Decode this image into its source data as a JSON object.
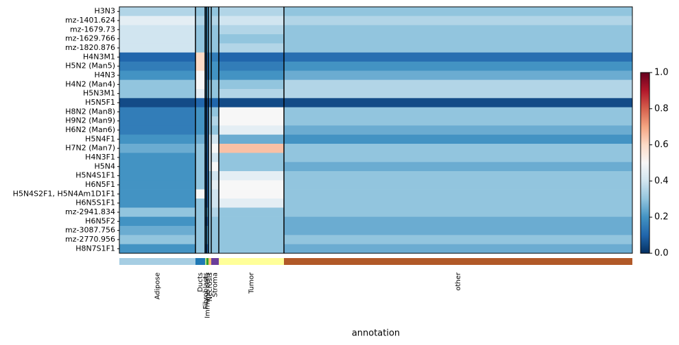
{
  "chart_data": {
    "type": "heatmap",
    "xlabel": "annotation",
    "rows": [
      "H3N3",
      "mz-1401.624",
      "mz-1679.73",
      "mz-1629.766",
      "mz-1820.876",
      "H4N3M1",
      "H5N2 (Man5)",
      "H4N3",
      "H4N2 (Man4)",
      "H5N3M1",
      "H5N5F1",
      "H8N2 (Man8)",
      "H9N2 (Man9)",
      "H6N2 (Man6)",
      "H5N4F1",
      "H7N2 (Man7)",
      "H4N3F1",
      "H5N4",
      "H5N4S1F1",
      "H6N5F1",
      "H5N4S2F1, H5N4Am1D1F1",
      "H6N5S1F1",
      "mz-2941.834",
      "H6N5F2",
      "mz-3087.756",
      "mz-2770.956",
      "H8N7S1F1"
    ],
    "groups": [
      {
        "name": "Adipose",
        "color": "#a6cee3",
        "size": 111
      },
      {
        "name": "Ducts",
        "color": "#1f78b4",
        "size": 14
      },
      {
        "name": "Fibroblasts",
        "color": "#b2df8a",
        "size": 2
      },
      {
        "name": "Immune cells",
        "color": "#33a02c",
        "size": 3
      },
      {
        "name": "Necrosis",
        "color": "#fdbf6f",
        "size": 4
      },
      {
        "name": "Stroma",
        "color": "#6a3d9a",
        "size": 11
      },
      {
        "name": "Tumor",
        "color": "#ffff99",
        "size": 95
      },
      {
        "name": "other",
        "color": "#b15928",
        "size": 508
      }
    ],
    "values": [
      [
        0.35,
        0.3,
        0.2,
        0.2,
        0.3,
        0.3,
        0.35,
        0.3
      ],
      [
        0.45,
        0.35,
        0.2,
        0.2,
        0.3,
        0.35,
        0.4,
        0.35
      ],
      [
        0.4,
        0.3,
        0.2,
        0.2,
        0.3,
        0.3,
        0.35,
        0.3
      ],
      [
        0.4,
        0.3,
        0.2,
        0.2,
        0.3,
        0.3,
        0.3,
        0.3
      ],
      [
        0.4,
        0.3,
        0.2,
        0.2,
        0.3,
        0.3,
        0.35,
        0.3
      ],
      [
        0.1,
        0.6,
        0.1,
        0.1,
        0.2,
        0.15,
        0.1,
        0.12
      ],
      [
        0.15,
        0.6,
        0.15,
        0.1,
        0.2,
        0.2,
        0.15,
        0.2
      ],
      [
        0.2,
        0.5,
        0.15,
        0.1,
        0.2,
        0.2,
        0.2,
        0.25
      ],
      [
        0.3,
        0.5,
        0.2,
        0.2,
        0.3,
        0.3,
        0.3,
        0.35
      ],
      [
        0.3,
        0.45,
        0.2,
        0.2,
        0.3,
        0.3,
        0.35,
        0.35
      ],
      [
        0.05,
        0.1,
        0.05,
        0.05,
        0.1,
        0.1,
        0.05,
        0.05
      ],
      [
        0.15,
        0.2,
        0.1,
        0.1,
        0.3,
        0.3,
        0.5,
        0.3
      ],
      [
        0.15,
        0.2,
        0.1,
        0.1,
        0.3,
        0.35,
        0.5,
        0.3
      ],
      [
        0.15,
        0.2,
        0.1,
        0.1,
        0.3,
        0.3,
        0.45,
        0.25
      ],
      [
        0.2,
        0.25,
        0.1,
        0.1,
        0.4,
        0.4,
        0.25,
        0.2
      ],
      [
        0.25,
        0.3,
        0.15,
        0.1,
        0.4,
        0.5,
        0.65,
        0.3
      ],
      [
        0.2,
        0.3,
        0.1,
        0.1,
        0.4,
        0.4,
        0.3,
        0.3
      ],
      [
        0.2,
        0.3,
        0.1,
        0.1,
        0.4,
        0.5,
        0.3,
        0.25
      ],
      [
        0.2,
        0.3,
        0.1,
        0.1,
        0.3,
        0.4,
        0.45,
        0.3
      ],
      [
        0.2,
        0.3,
        0.1,
        0.1,
        0.3,
        0.45,
        0.5,
        0.3
      ],
      [
        0.2,
        0.5,
        0.1,
        0.1,
        0.3,
        0.4,
        0.5,
        0.3
      ],
      [
        0.2,
        0.3,
        0.1,
        0.1,
        0.3,
        0.4,
        0.45,
        0.3
      ],
      [
        0.3,
        0.3,
        0.2,
        0.2,
        0.3,
        0.35,
        0.3,
        0.3
      ],
      [
        0.2,
        0.3,
        0.1,
        0.1,
        0.3,
        0.3,
        0.3,
        0.25
      ],
      [
        0.25,
        0.3,
        0.2,
        0.2,
        0.3,
        0.3,
        0.3,
        0.25
      ],
      [
        0.3,
        0.3,
        0.2,
        0.2,
        0.3,
        0.3,
        0.3,
        0.3
      ],
      [
        0.2,
        0.3,
        0.1,
        0.1,
        0.3,
        0.3,
        0.3,
        0.25
      ]
    ],
    "colormap": [
      "#053061",
      "#2166ac",
      "#4393c3",
      "#92c5de",
      "#d1e5f0",
      "#f7f7f7",
      "#fddbc7",
      "#f4a582",
      "#d6604d",
      "#b2182b",
      "#67001f"
    ],
    "clim": [
      0,
      1
    ],
    "cticks": [
      {
        "value": 0,
        "label": "0.0"
      },
      {
        "value": 0.2,
        "label": "0.2"
      },
      {
        "value": 0.4,
        "label": "0.4"
      },
      {
        "value": 0.6,
        "label": "0.6"
      },
      {
        "value": 0.8,
        "label": "0.8"
      },
      {
        "value": 1,
        "label": "1.0"
      }
    ]
  }
}
